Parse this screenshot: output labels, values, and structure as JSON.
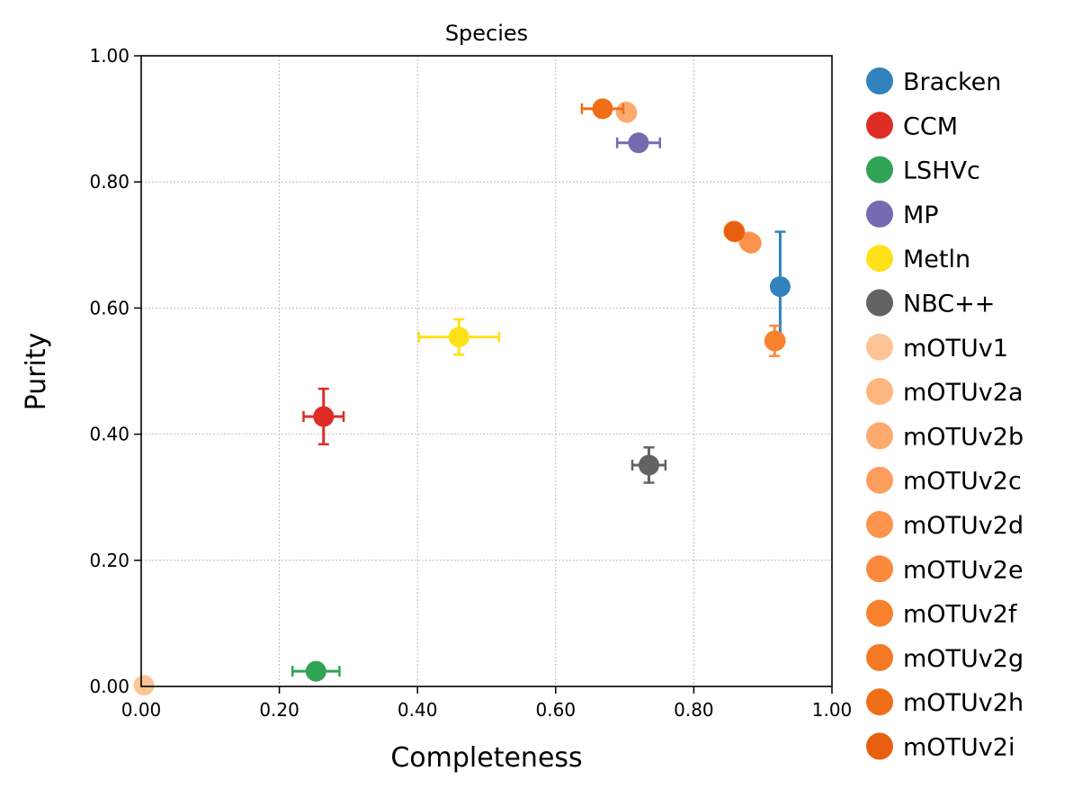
{
  "chart_data": {
    "type": "scatter",
    "title": "Species",
    "xlabel": "Completeness",
    "ylabel": "Purity",
    "xlim": [
      0,
      1
    ],
    "ylim": [
      0,
      1
    ],
    "xticks": [
      "0.00",
      "0.20",
      "0.40",
      "0.60",
      "0.80",
      "1.00"
    ],
    "yticks": [
      "0.00",
      "0.20",
      "0.40",
      "0.60",
      "0.80",
      "1.00"
    ],
    "grid": true,
    "legend_position": "outside-right",
    "series": [
      {
        "name": "Bracken",
        "color": "#3182bd",
        "x": 0.925,
        "y": 0.634,
        "xerr": 0.0,
        "yerr": 0.087
      },
      {
        "name": "CCM",
        "color": "#de2d26",
        "x": 0.264,
        "y": 0.428,
        "xerr": 0.029,
        "yerr": 0.044
      },
      {
        "name": "LSHVc",
        "color": "#31a354",
        "x": 0.253,
        "y": 0.024,
        "xerr": 0.034,
        "yerr": 0.0
      },
      {
        "name": "MP",
        "color": "#756bb1",
        "x": 0.72,
        "y": 0.862,
        "xerr": 0.031,
        "yerr": 0.0
      },
      {
        "name": "Metln",
        "color": "#ffe119",
        "x": 0.46,
        "y": 0.554,
        "xerr": 0.058,
        "yerr": 0.028
      },
      {
        "name": "NBC++",
        "color": "#636363",
        "x": 0.735,
        "y": 0.351,
        "xerr": 0.024,
        "yerr": 0.028
      },
      {
        "name": "mOTUv1",
        "color": "#fdc596",
        "x": 0.004,
        "y": 0.002,
        "xerr": 0.0,
        "yerr": 0.0
      },
      {
        "name": "mOTUv2a",
        "color": "#fdb77f",
        "x": 0.702,
        "y": 0.911,
        "xerr": 0.0,
        "yerr": 0.0
      },
      {
        "name": "mOTUv2b",
        "color": "#fdaa6e",
        "x": 0.703,
        "y": 0.91,
        "xerr": 0.0,
        "yerr": 0.0
      },
      {
        "name": "mOTUv2c",
        "color": "#fd9e5d",
        "x": 0.88,
        "y": 0.705,
        "xerr": 0.0,
        "yerr": 0.0
      },
      {
        "name": "mOTUv2d",
        "color": "#fd934c",
        "x": 0.883,
        "y": 0.703,
        "xerr": 0.0,
        "yerr": 0.0
      },
      {
        "name": "mOTUv2e",
        "color": "#fc8a3c",
        "x": 0.917,
        "y": 0.548,
        "xerr": 0.0,
        "yerr": 0.024
      },
      {
        "name": "mOTUv2f",
        "color": "#f8812d",
        "x": 0.918,
        "y": 0.548,
        "xerr": 0.0,
        "yerr": 0.0
      },
      {
        "name": "mOTUv2g",
        "color": "#f57922",
        "x": 0.858,
        "y": 0.722,
        "xerr": 0.012,
        "yerr": 0.0
      },
      {
        "name": "mOTUv2h",
        "color": "#f16e18",
        "x": 0.668,
        "y": 0.916,
        "xerr": 0.03,
        "yerr": 0.0
      },
      {
        "name": "mOTUv2i",
        "color": "#e95f10",
        "x": 0.859,
        "y": 0.721,
        "xerr": 0.0,
        "yerr": 0.0
      }
    ]
  }
}
